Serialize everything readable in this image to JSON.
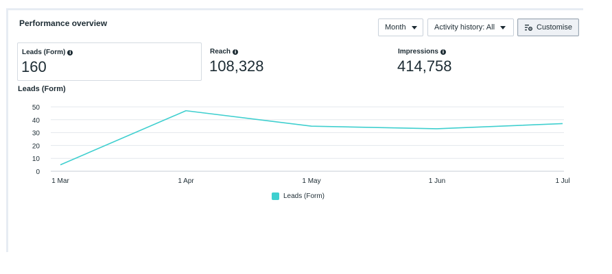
{
  "panel": {
    "title": "Performance overview"
  },
  "controls": {
    "month_label": "Month",
    "activity_label": "Activity history: All",
    "customise_label": "Customise"
  },
  "metrics": [
    {
      "label": "Leads (Form)",
      "value": "160",
      "selected": true
    },
    {
      "label": "Reach",
      "value": "108,328",
      "selected": false
    },
    {
      "label": "Impressions",
      "value": "414,758",
      "selected": false
    }
  ],
  "colors": {
    "series": "#3fcfcf",
    "grid": "#e3e7ec",
    "text": "#1c2b33"
  },
  "icons": {
    "info": "info-icon",
    "caret": "caret-down-icon",
    "customise": "sliders-gear-icon"
  },
  "chart_data": {
    "type": "line",
    "title": "Leads (Form)",
    "categories": [
      "1 Mar",
      "1 Apr",
      "1 May",
      "1 Jun",
      "1 Jul"
    ],
    "series": [
      {
        "name": "Leads (Form)",
        "values": [
          5,
          47,
          35,
          33,
          37
        ]
      }
    ],
    "yticks": [
      0,
      10,
      20,
      30,
      40,
      50
    ],
    "ylim": [
      0,
      50
    ],
    "grid": true,
    "legend": "bottom-center"
  }
}
